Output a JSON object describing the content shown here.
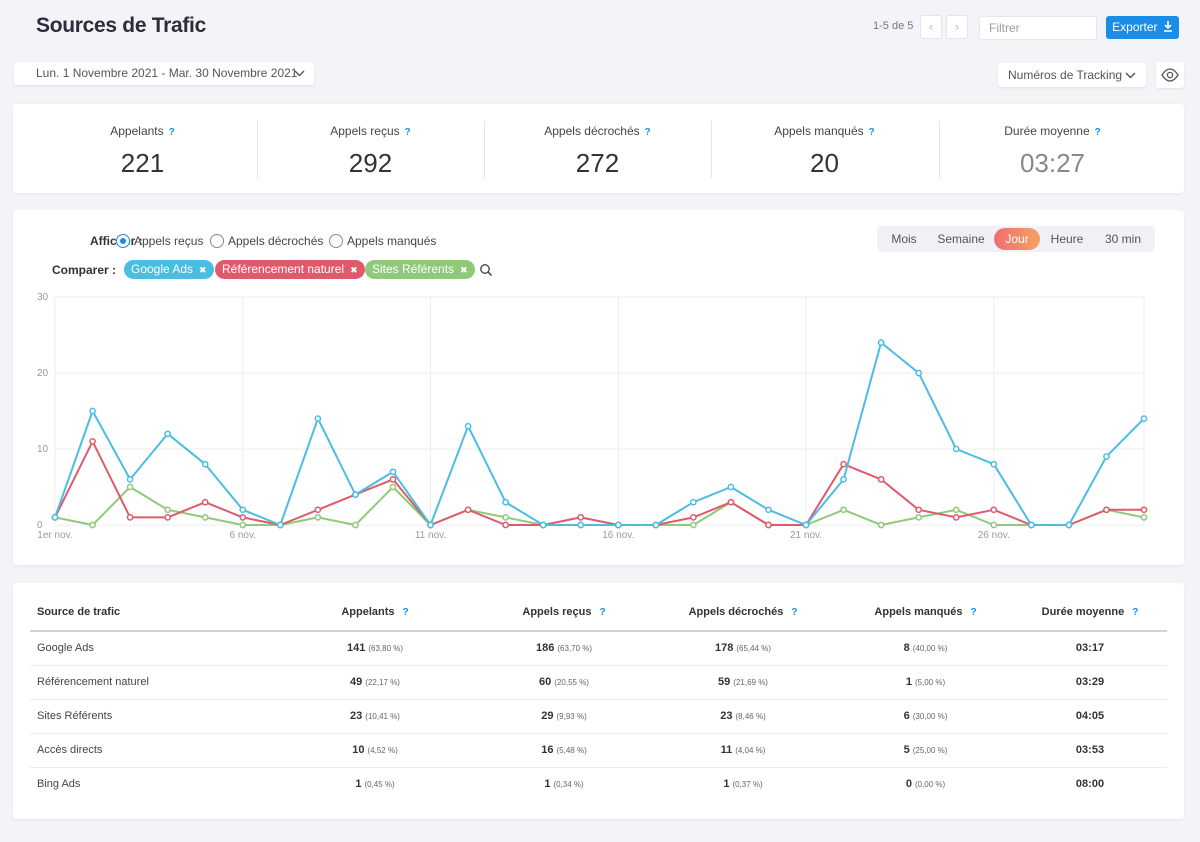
{
  "header": {
    "title": "Sources de Trafic",
    "pager": "1-5 de 5",
    "filter_placeholder": "Filtrer",
    "export_label": "Exporter"
  },
  "toolbar": {
    "date_range": "Lun. 1 Novembre 2021 - Mar. 30 Novembre 2021",
    "tracking_label": "Numéros de Tracking"
  },
  "kpis": [
    {
      "label": "Appelants",
      "value": "221"
    },
    {
      "label": "Appels reçus",
      "value": "292"
    },
    {
      "label": "Appels décrochés",
      "value": "272"
    },
    {
      "label": "Appels manqués",
      "value": "20"
    },
    {
      "label": "Durée moyenne",
      "value": "03:27"
    }
  ],
  "help_mark": "?",
  "controls": {
    "afficher_label": "Afficher :",
    "comparer_label": "Comparer :",
    "radios": [
      "Appels reçus",
      "Appels décrochés",
      "Appels manqués"
    ],
    "selected_radio": "Appels reçus",
    "tags": [
      "Google Ads",
      "Référencement naturel",
      "Sites Référents"
    ],
    "tag_remove": "✖",
    "granularity": [
      "Mois",
      "Semaine",
      "Jour",
      "Heure",
      "30 min"
    ],
    "active_granularity": "Jour"
  },
  "colors": {
    "google_ads": "#4bbde3",
    "referencement": "#e05a6c",
    "sites_referents": "#8fc97a",
    "accent": "#1a8de6"
  },
  "chart_data": {
    "type": "line",
    "title": "",
    "xlabel": "",
    "ylabel": "",
    "ylim": [
      0,
      30
    ],
    "yticks": [
      0,
      10,
      20,
      30
    ],
    "x": [
      1,
      2,
      3,
      4,
      5,
      6,
      7,
      8,
      9,
      10,
      11,
      12,
      13,
      14,
      15,
      16,
      17,
      18,
      19,
      20,
      21,
      22,
      23,
      24,
      25,
      26,
      27,
      28,
      29,
      30
    ],
    "xtick_labels": [
      {
        "x": 1,
        "label": "1er nov."
      },
      {
        "x": 6,
        "label": "6 nov."
      },
      {
        "x": 11,
        "label": "11 nov."
      },
      {
        "x": 16,
        "label": "16 nov."
      },
      {
        "x": 21,
        "label": "21 nov."
      },
      {
        "x": 26,
        "label": "26 nov."
      }
    ],
    "series": [
      {
        "name": "Google Ads",
        "color": "#4bbde3",
        "values": [
          1,
          15,
          6,
          12,
          8,
          2,
          0,
          14,
          4,
          7,
          0,
          13,
          3,
          0,
          0,
          0,
          0,
          3,
          5,
          2,
          0,
          6,
          24,
          20,
          10,
          8,
          0,
          0,
          9,
          14
        ]
      },
      {
        "name": "Référencement naturel",
        "color": "#e05a6c",
        "values": [
          1,
          11,
          1,
          1,
          3,
          1,
          0,
          2,
          4,
          6,
          0,
          2,
          0,
          0,
          1,
          0,
          0,
          1,
          3,
          0,
          0,
          8,
          6,
          2,
          1,
          2,
          0,
          0,
          2,
          2
        ]
      },
      {
        "name": "Sites Référents",
        "color": "#8fc97a",
        "values": [
          1,
          0,
          5,
          2,
          1,
          0,
          0,
          1,
          0,
          5,
          0,
          2,
          1,
          0,
          0,
          0,
          0,
          0,
          3,
          0,
          0,
          2,
          0,
          1,
          2,
          0,
          0,
          0,
          2,
          1
        ]
      }
    ]
  },
  "table": {
    "headers": [
      "Source de trafic",
      "Appelants",
      "Appels reçus",
      "Appels décrochés",
      "Appels manqués",
      "Durée moyenne"
    ],
    "rows": [
      {
        "source": "Google Ads",
        "appelants": "141",
        "appelants_pct": "(63,80 %)",
        "recus": "186",
        "recus_pct": "(63,70 %)",
        "decroches": "178",
        "decroches_pct": "(65,44 %)",
        "manques": "8",
        "manques_pct": "(40,00 %)",
        "duree": "03:17"
      },
      {
        "source": "Référencement naturel",
        "appelants": "49",
        "appelants_pct": "(22,17 %)",
        "recus": "60",
        "recus_pct": "(20,55 %)",
        "decroches": "59",
        "decroches_pct": "(21,69 %)",
        "manques": "1",
        "manques_pct": "(5,00 %)",
        "duree": "03:29"
      },
      {
        "source": "Sites Référents",
        "appelants": "23",
        "appelants_pct": "(10,41 %)",
        "recus": "29",
        "recus_pct": "(9,93 %)",
        "decroches": "23",
        "decroches_pct": "(8,46 %)",
        "manques": "6",
        "manques_pct": "(30,00 %)",
        "duree": "04:05"
      },
      {
        "source": "Accès directs",
        "appelants": "10",
        "appelants_pct": "(4,52 %)",
        "recus": "16",
        "recus_pct": "(5,48 %)",
        "decroches": "11",
        "decroches_pct": "(4,04 %)",
        "manques": "5",
        "manques_pct": "(25,00 %)",
        "duree": "03:53"
      },
      {
        "source": "Bing Ads",
        "appelants": "1",
        "appelants_pct": "(0,45 %)",
        "recus": "1",
        "recus_pct": "(0,34 %)",
        "decroches": "1",
        "decroches_pct": "(0,37 %)",
        "manques": "0",
        "manques_pct": "(0,00 %)",
        "duree": "08:00"
      }
    ]
  }
}
